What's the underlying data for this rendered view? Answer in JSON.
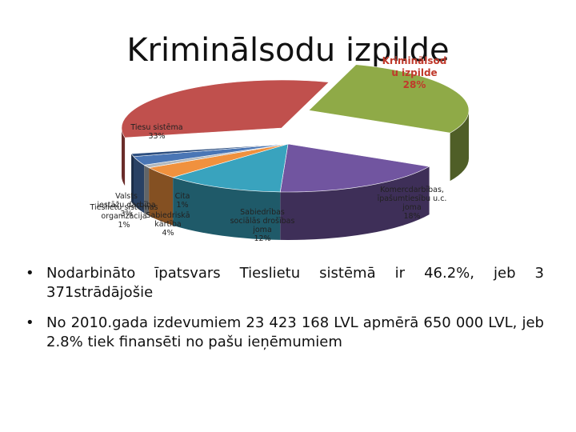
{
  "title": "Kriminālsodu izpilde",
  "chart_data": {
    "type": "pie",
    "series": [
      {
        "label": [
          "Kriminālsod",
          "u izpilde",
          "28%"
        ],
        "value": 28,
        "color": "#8faa47"
      },
      {
        "label": [
          "Komercdarbības,",
          "īpašumtiesību u.c.",
          "joma",
          "18%"
        ],
        "value": 18,
        "color": "#7155a0"
      },
      {
        "label": [
          "Sabiedrības",
          "sociālās drošības",
          "joma",
          "12%"
        ],
        "value": 12,
        "color": "#39a3be"
      },
      {
        "label": [
          "Sabiedriskā",
          "kārtība",
          "4%"
        ],
        "value": 4,
        "color": "#f0913e"
      },
      {
        "label": [
          "Cita",
          "1%"
        ],
        "value": 1,
        "color": "#b2b8bd"
      },
      {
        "label": [
          "Valsts",
          "iestāžu darbība",
          "3%"
        ],
        "value": 3,
        "color": "#4a76b5"
      },
      {
        "label": [
          "Tieslietu sistēmas",
          "organizācija",
          "1%"
        ],
        "value": 1,
        "color": "#2d4f80"
      },
      {
        "label": [
          "Tiesu sistēma",
          "33%"
        ],
        "value": 33,
        "color": "#c0504d"
      }
    ]
  },
  "bullets": [
    "Nodarbināto īpatsvars Tieslietu sistēmā ir 46.2%, jeb 3 371strādājošie",
    "No 2010.gada izdevumiem 23 423 168 LVL apmērā 650 000 LVL, jeb 2.8% tiek finansēti no pašu ieņēmumiem"
  ],
  "bullet_glyph": "•"
}
